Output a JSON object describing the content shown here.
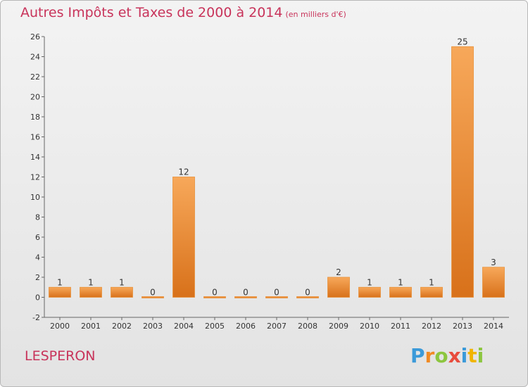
{
  "header": {
    "title": "Autres Impôts et Taxes de 2000 à 2014",
    "subtitle": "(en milliers d'€)"
  },
  "footer": {
    "location": "LESPERON",
    "brand": [
      "P",
      "r",
      "o",
      "x",
      "i",
      "t",
      "i"
    ],
    "brand_colors": [
      "#3b9ad9",
      "#f08a24",
      "#8cc63f",
      "#e84c3d",
      "#3b9ad9",
      "#f0b400",
      "#8cc63f"
    ]
  },
  "chart_data": {
    "type": "bar",
    "title": "Autres Impôts et Taxes de 2000 à 2014",
    "subtitle": "(en milliers d'€)",
    "categories": [
      "2000",
      "2001",
      "2002",
      "2003",
      "2004",
      "2005",
      "2006",
      "2007",
      "2008",
      "2009",
      "2010",
      "2011",
      "2012",
      "2013",
      "2014"
    ],
    "values": [
      1,
      1,
      1,
      0,
      12,
      0,
      0,
      0,
      0,
      2,
      1,
      1,
      1,
      25,
      3
    ],
    "ylim": [
      -2,
      26
    ],
    "yticks": [
      -2,
      0,
      2,
      4,
      6,
      8,
      10,
      12,
      14,
      16,
      18,
      20,
      22,
      24,
      26
    ],
    "grid": false,
    "bar_color": "#f08a24",
    "xlabel": "",
    "ylabel": ""
  }
}
